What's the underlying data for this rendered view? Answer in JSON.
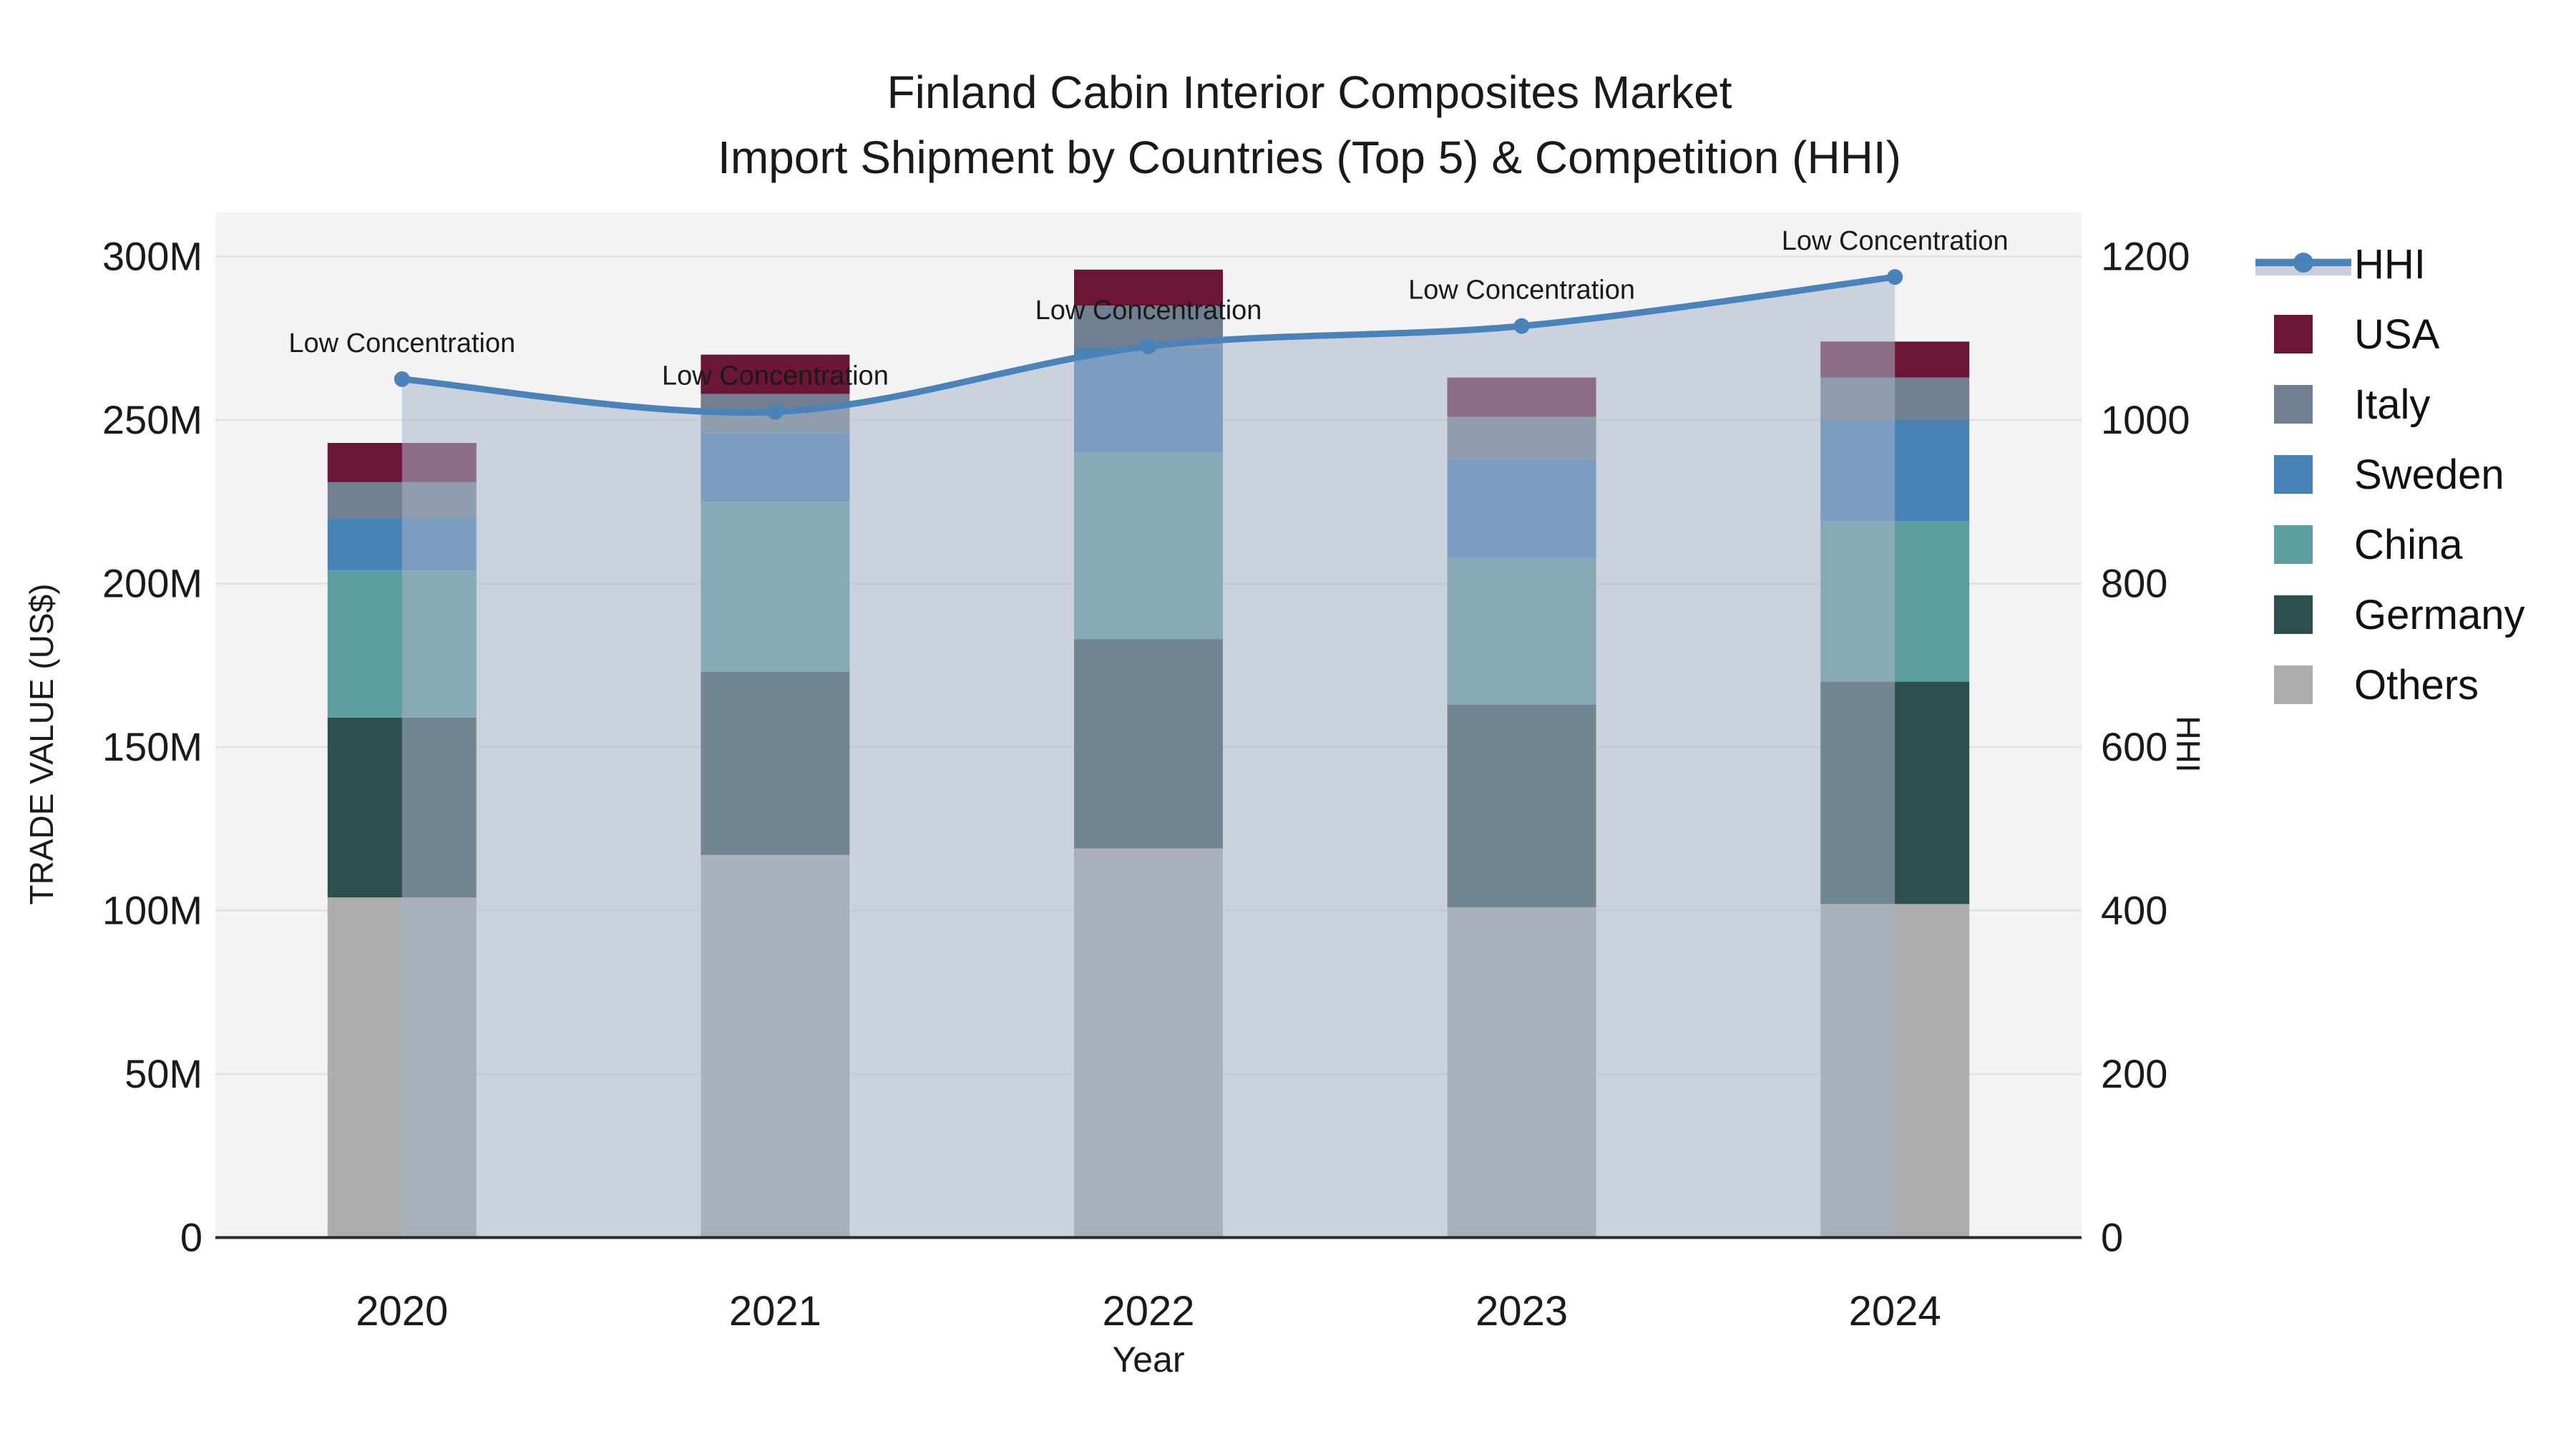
{
  "title": {
    "line1": "Finland Cabin Interior Composites Market",
    "line2": "Import Shipment by Countries (Top 5) & Competition (HHI)"
  },
  "axes": {
    "x": {
      "label": "Year",
      "categories": [
        "2020",
        "2021",
        "2022",
        "2023",
        "2024"
      ]
    },
    "y_left": {
      "label": "TRADE VALUE (US$)",
      "ticks": [
        "0",
        "50M",
        "100M",
        "150M",
        "200M",
        "250M",
        "300M"
      ],
      "tick_values": [
        0,
        50,
        100,
        150,
        200,
        250,
        300
      ],
      "max": 300
    },
    "y_right": {
      "label": "HHI",
      "ticks": [
        "0",
        "200",
        "400",
        "600",
        "800",
        "1000",
        "1200"
      ],
      "tick_values": [
        0,
        200,
        400,
        600,
        800,
        1000,
        1200
      ],
      "max": 1200
    }
  },
  "legend": {
    "items": [
      {
        "label": "HHI",
        "type": "line",
        "color": "#4a83ba"
      },
      {
        "label": "USA",
        "type": "bar",
        "color": "#6b1537"
      },
      {
        "label": "Italy",
        "type": "bar",
        "color": "#708090"
      },
      {
        "label": "Sweden",
        "type": "bar",
        "color": "#4682b4"
      },
      {
        "label": "China",
        "type": "bar",
        "color": "#5f9ea0"
      },
      {
        "label": "Germany",
        "type": "bar",
        "color": "#2f4f4f"
      },
      {
        "label": "Others",
        "type": "bar",
        "color": "#adadad"
      }
    ]
  },
  "chart_data": {
    "type": "bar+line",
    "title": "Finland Cabin Interior Composites Market — Import Shipment by Countries (Top 5) & Competition (HHI)",
    "xlabel": "Year",
    "ylabel_left": "TRADE VALUE (US$)",
    "ylabel_right": "HHI",
    "ylim_left": [
      0,
      300
    ],
    "ylim_right": [
      0,
      1200
    ],
    "units_left": "millions of US$",
    "categories": [
      "2020",
      "2021",
      "2022",
      "2023",
      "2024"
    ],
    "bar_series": [
      {
        "name": "Others",
        "color": "#adadad",
        "values": [
          104,
          117,
          119,
          101,
          102
        ]
      },
      {
        "name": "Germany",
        "color": "#2f4f4f",
        "values": [
          55,
          56,
          64,
          62,
          68
        ]
      },
      {
        "name": "China",
        "color": "#5f9ea0",
        "values": [
          45,
          52,
          57,
          45,
          49
        ]
      },
      {
        "name": "Sweden",
        "color": "#4682b4",
        "values": [
          16,
          21,
          32,
          30,
          31
        ]
      },
      {
        "name": "Italy",
        "color": "#708090",
        "values": [
          11,
          12,
          13,
          13,
          13
        ]
      },
      {
        "name": "USA",
        "color": "#6b1537",
        "values": [
          12,
          12,
          11,
          12,
          11
        ]
      }
    ],
    "bar_totals": [
      243,
      270,
      296,
      263,
      274
    ],
    "line_series": {
      "name": "HHI",
      "axis": "right",
      "color": "#4a83ba",
      "fill_color": "rgba(169,180,200,0.55)",
      "values": [
        1050,
        1010,
        1090,
        1115,
        1175
      ]
    },
    "annotations": [
      {
        "text": "Low Concentration",
        "x": "2020"
      },
      {
        "text": "Low Concentration",
        "x": "2021"
      },
      {
        "text": "Low Concentration",
        "x": "2022"
      },
      {
        "text": "Low Concentration",
        "x": "2023"
      },
      {
        "text": "Low Concentration",
        "x": "2024"
      }
    ],
    "legend_position": "right",
    "grid": true,
    "plot_bg": "#f3f3f5",
    "grid_color": "#e3e3e7"
  }
}
